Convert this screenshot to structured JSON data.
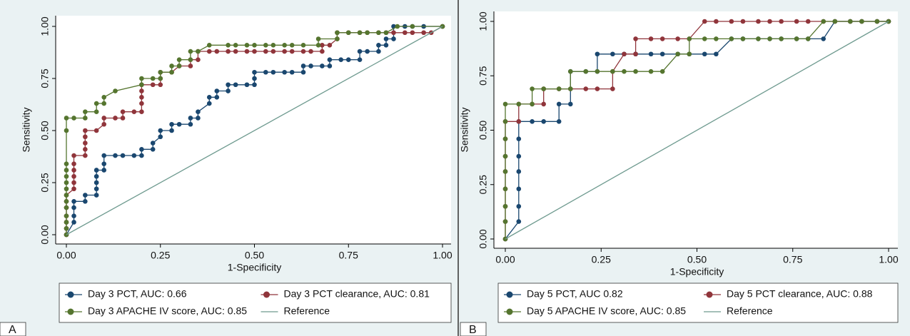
{
  "chart_data": [
    {
      "type": "line",
      "panel_label": "A",
      "xlabel": "1-Specificity",
      "ylabel": "Sensitivity",
      "xlim": [
        0,
        1
      ],
      "ylim": [
        0,
        1
      ],
      "xticks": [
        {
          "value": 0,
          "label": "0.00"
        },
        {
          "value": 0.25,
          "label": "0.25"
        },
        {
          "value": 0.5,
          "label": "0.50"
        },
        {
          "value": 0.75,
          "label": "0.75"
        },
        {
          "value": 1,
          "label": "1.00"
        }
      ],
      "yticks": [
        {
          "value": 0,
          "label": "0.00"
        },
        {
          "value": 0.25,
          "label": "0.25"
        },
        {
          "value": 0.5,
          "label": "0.50"
        },
        {
          "value": 0.75,
          "label": "0.75"
        },
        {
          "value": 1,
          "label": "1.00"
        }
      ],
      "series": [
        {
          "name": "Day 3 PCT, AUC: 0.66",
          "color": "#1a476f",
          "markers": true,
          "x": [
            0,
            0.02,
            0.02,
            0.02,
            0.02,
            0.05,
            0.05,
            0.08,
            0.08,
            0.08,
            0.08,
            0.08,
            0.1,
            0.1,
            0.1,
            0.13,
            0.15,
            0.18,
            0.2,
            0.2,
            0.23,
            0.23,
            0.25,
            0.25,
            0.28,
            0.28,
            0.3,
            0.33,
            0.33,
            0.35,
            0.35,
            0.38,
            0.38,
            0.4,
            0.4,
            0.43,
            0.43,
            0.45,
            0.48,
            0.5,
            0.5,
            0.5,
            0.53,
            0.55,
            0.58,
            0.6,
            0.63,
            0.63,
            0.65,
            0.68,
            0.7,
            0.7,
            0.73,
            0.75,
            0.78,
            0.78,
            0.8,
            0.83,
            0.83,
            0.85,
            0.85,
            0.87,
            0.87,
            0.9,
            0.92,
            0.95,
            1
          ],
          "values": [
            0,
            0.06,
            0.09,
            0.13,
            0.16,
            0.16,
            0.19,
            0.19,
            0.22,
            0.25,
            0.28,
            0.31,
            0.31,
            0.34,
            0.38,
            0.38,
            0.38,
            0.38,
            0.38,
            0.41,
            0.41,
            0.44,
            0.47,
            0.5,
            0.5,
            0.53,
            0.53,
            0.53,
            0.56,
            0.56,
            0.59,
            0.63,
            0.66,
            0.66,
            0.69,
            0.69,
            0.72,
            0.72,
            0.72,
            0.72,
            0.75,
            0.78,
            0.78,
            0.78,
            0.78,
            0.78,
            0.78,
            0.81,
            0.81,
            0.81,
            0.81,
            0.84,
            0.84,
            0.84,
            0.84,
            0.88,
            0.88,
            0.88,
            0.91,
            0.91,
            0.94,
            0.94,
            1,
            1,
            1,
            1,
            1
          ]
        },
        {
          "name": "Day 3 PCT clearance, AUC: 0.81",
          "color": "#90353b",
          "markers": true,
          "x": [
            0,
            0,
            0,
            0,
            0,
            0,
            0,
            0.02,
            0.02,
            0.02,
            0.02,
            0.02,
            0.02,
            0.05,
            0.05,
            0.05,
            0.05,
            0.05,
            0.08,
            0.1,
            0.1,
            0.13,
            0.15,
            0.15,
            0.18,
            0.2,
            0.2,
            0.2,
            0.2,
            0.2,
            0.23,
            0.25,
            0.25,
            0.25,
            0.28,
            0.3,
            0.33,
            0.33,
            0.35,
            0.35,
            0.38,
            0.4,
            0.43,
            0.45,
            0.48,
            0.5,
            0.53,
            0.55,
            0.58,
            0.6,
            0.63,
            0.65,
            0.68,
            0.68,
            0.7,
            0.72,
            0.72,
            0.75,
            0.78,
            0.8,
            0.83,
            0.85,
            0.87,
            0.9,
            0.92,
            0.95,
            0.97,
            1
          ],
          "values": [
            0,
            0.03,
            0.06,
            0.09,
            0.13,
            0.16,
            0.19,
            0.22,
            0.25,
            0.28,
            0.31,
            0.34,
            0.38,
            0.38,
            0.41,
            0.44,
            0.47,
            0.5,
            0.5,
            0.53,
            0.56,
            0.56,
            0.56,
            0.59,
            0.59,
            0.59,
            0.63,
            0.66,
            0.69,
            0.72,
            0.72,
            0.72,
            0.75,
            0.78,
            0.78,
            0.81,
            0.81,
            0.84,
            0.84,
            0.88,
            0.88,
            0.88,
            0.88,
            0.88,
            0.88,
            0.88,
            0.88,
            0.88,
            0.88,
            0.88,
            0.88,
            0.88,
            0.88,
            0.91,
            0.91,
            0.94,
            0.97,
            0.97,
            0.97,
            0.97,
            0.97,
            0.97,
            0.97,
            0.97,
            0.97,
            0.97,
            0.97,
            1
          ]
        },
        {
          "name": "Day 3 APACHE IV score, AUC: 0.85",
          "color": "#55752f",
          "markers": true,
          "x": [
            0,
            0,
            0,
            0,
            0,
            0,
            0,
            0,
            0,
            0,
            0,
            0,
            0,
            0,
            0.02,
            0.05,
            0.05,
            0.08,
            0.08,
            0.1,
            0.1,
            0.13,
            0.2,
            0.2,
            0.23,
            0.25,
            0.25,
            0.28,
            0.28,
            0.3,
            0.3,
            0.33,
            0.33,
            0.35,
            0.38,
            0.43,
            0.45,
            0.48,
            0.5,
            0.53,
            0.55,
            0.58,
            0.6,
            0.63,
            0.67,
            0.67,
            0.72,
            0.72,
            0.75,
            0.78,
            0.8,
            0.83,
            0.85,
            0.88,
            0.92,
            1
          ],
          "values": [
            0,
            0.03,
            0.06,
            0.09,
            0.13,
            0.16,
            0.19,
            0.22,
            0.25,
            0.28,
            0.31,
            0.34,
            0.5,
            0.56,
            0.56,
            0.56,
            0.59,
            0.59,
            0.63,
            0.63,
            0.66,
            0.69,
            0.72,
            0.75,
            0.75,
            0.75,
            0.78,
            0.78,
            0.81,
            0.81,
            0.84,
            0.84,
            0.88,
            0.88,
            0.91,
            0.91,
            0.91,
            0.91,
            0.91,
            0.91,
            0.91,
            0.91,
            0.91,
            0.91,
            0.91,
            0.94,
            0.94,
            0.97,
            0.97,
            0.97,
            0.97,
            0.97,
            0.97,
            1,
            1,
            1
          ]
        },
        {
          "name": "Reference",
          "color": "#6e9a8f",
          "markers": false,
          "x": [
            0,
            1
          ],
          "values": [
            0,
            1
          ]
        }
      ]
    },
    {
      "type": "line",
      "panel_label": "B",
      "xlabel": "1-Specificity",
      "ylabel": "Sensitivity",
      "xlim": [
        0,
        1
      ],
      "ylim": [
        0,
        1
      ],
      "xticks": [
        {
          "value": 0,
          "label": "0.00"
        },
        {
          "value": 0.25,
          "label": "0.25"
        },
        {
          "value": 0.5,
          "label": "0.50"
        },
        {
          "value": 0.75,
          "label": "0.75"
        },
        {
          "value": 1,
          "label": "1.00"
        }
      ],
      "yticks": [
        {
          "value": 0,
          "label": "0.00"
        },
        {
          "value": 0.25,
          "label": "0.25"
        },
        {
          "value": 0.5,
          "label": "0.50"
        },
        {
          "value": 0.75,
          "label": "0.75"
        },
        {
          "value": 1,
          "label": "1.00"
        }
      ],
      "series": [
        {
          "name": "Day 5 PCT, AUC 0.82",
          "color": "#1a476f",
          "markers": true,
          "x": [
            0,
            0.035,
            0.035,
            0.035,
            0.035,
            0.035,
            0.035,
            0.035,
            0.07,
            0.1,
            0.14,
            0.14,
            0.17,
            0.17,
            0.21,
            0.24,
            0.24,
            0.28,
            0.31,
            0.34,
            0.38,
            0.41,
            0.45,
            0.48,
            0.52,
            0.55,
            0.59,
            0.62,
            0.66,
            0.69,
            0.72,
            0.76,
            0.79,
            0.83,
            0.86,
            0.9,
            0.93,
            0.97,
            1
          ],
          "values": [
            0,
            0.08,
            0.15,
            0.23,
            0.31,
            0.38,
            0.46,
            0.54,
            0.54,
            0.54,
            0.54,
            0.62,
            0.62,
            0.77,
            0.77,
            0.77,
            0.85,
            0.85,
            0.85,
            0.85,
            0.85,
            0.85,
            0.85,
            0.85,
            0.85,
            0.85,
            0.92,
            0.92,
            0.92,
            0.92,
            0.92,
            0.92,
            0.92,
            0.92,
            1,
            1,
            1,
            1,
            1
          ]
        },
        {
          "name": "Day 5 PCT clearance, AUC: 0.88",
          "color": "#90353b",
          "markers": true,
          "x": [
            0,
            0,
            0,
            0,
            0,
            0,
            0,
            0,
            0.035,
            0.035,
            0.07,
            0.1,
            0.1,
            0.14,
            0.17,
            0.21,
            0.24,
            0.28,
            0.28,
            0.31,
            0.34,
            0.34,
            0.38,
            0.41,
            0.45,
            0.48,
            0.52,
            0.55,
            0.59,
            0.62,
            0.66,
            0.69,
            0.72,
            0.76,
            0.79,
            0.83,
            0.86,
            0.9,
            0.93,
            0.97,
            1
          ],
          "values": [
            0,
            0.08,
            0.15,
            0.23,
            0.31,
            0.38,
            0.46,
            0.54,
            0.54,
            0.62,
            0.62,
            0.62,
            0.69,
            0.69,
            0.69,
            0.69,
            0.69,
            0.69,
            0.77,
            0.85,
            0.85,
            0.92,
            0.92,
            0.92,
            0.92,
            0.92,
            1,
            1,
            1,
            1,
            1,
            1,
            1,
            1,
            1,
            1,
            1,
            1,
            1,
            1,
            1
          ]
        },
        {
          "name": "Day 5 APACHE IV score, AUC: 0.85",
          "color": "#55752f",
          "markers": true,
          "x": [
            0,
            0,
            0,
            0,
            0,
            0,
            0,
            0,
            0,
            0.035,
            0.07,
            0.07,
            0.1,
            0.14,
            0.17,
            0.17,
            0.21,
            0.24,
            0.28,
            0.31,
            0.34,
            0.38,
            0.41,
            0.45,
            0.48,
            0.48,
            0.52,
            0.55,
            0.59,
            0.62,
            0.66,
            0.69,
            0.72,
            0.76,
            0.79,
            0.83,
            0.86,
            0.9,
            0.93,
            0.97,
            1
          ],
          "values": [
            0,
            0.08,
            0.15,
            0.23,
            0.31,
            0.38,
            0.46,
            0.54,
            0.62,
            0.62,
            0.62,
            0.69,
            0.69,
            0.69,
            0.69,
            0.77,
            0.77,
            0.77,
            0.77,
            0.77,
            0.77,
            0.77,
            0.77,
            0.85,
            0.85,
            0.92,
            0.92,
            0.92,
            0.92,
            0.92,
            0.92,
            0.92,
            0.92,
            0.92,
            0.92,
            1,
            1,
            1,
            1,
            1,
            1
          ]
        },
        {
          "name": "Reference",
          "color": "#6e9a8f",
          "markers": false,
          "x": [
            0,
            1
          ],
          "values": [
            0,
            1
          ]
        }
      ]
    }
  ]
}
